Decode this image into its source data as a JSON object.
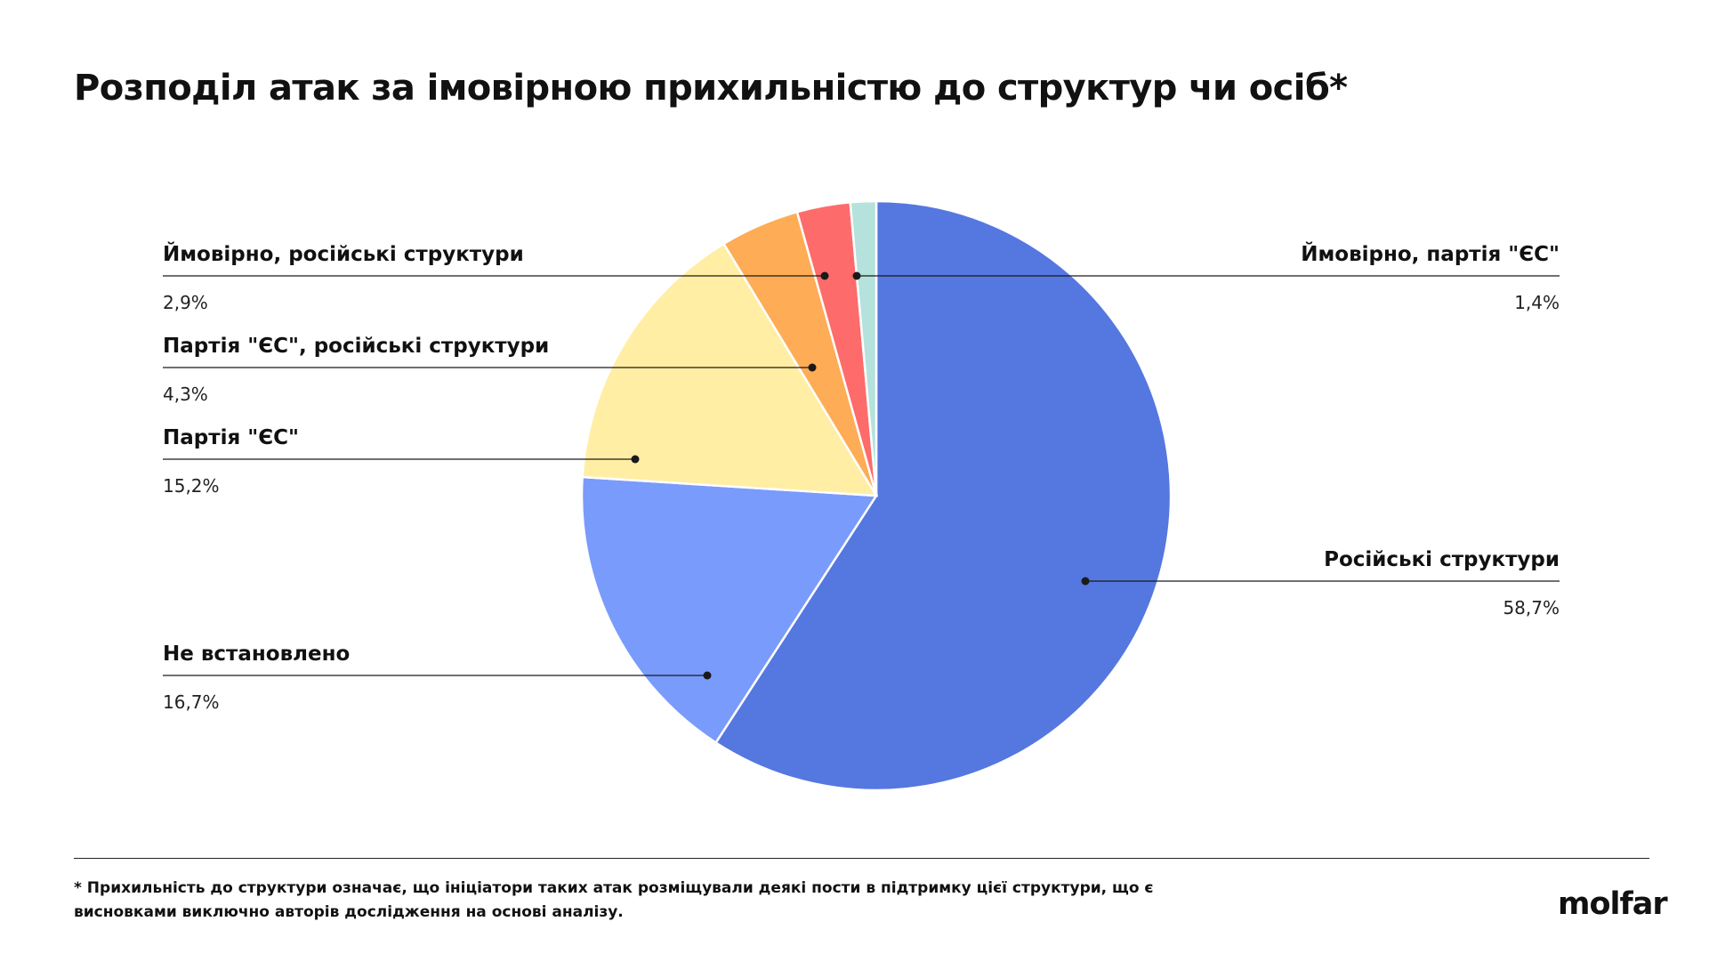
{
  "title": "Розподіл атак за імовірною прихильністю до структур чи осіб*",
  "chart_data": {
    "type": "pie",
    "title": "Розподіл атак за імовірною прихильністю до структур чи осіб*",
    "unit": "%",
    "slices": [
      {
        "label": "Російські структури",
        "value": 58.7,
        "display": "58,7%",
        "color": "#5577E0",
        "side": "right"
      },
      {
        "label": "Не встановлено",
        "value": 16.7,
        "display": "16,7%",
        "color": "#799BFB",
        "side": "left"
      },
      {
        "label": "Партія \"ЄС\"",
        "value": 15.2,
        "display": "15,2%",
        "color": "#FFEEA3",
        "side": "left"
      },
      {
        "label": "Партія \"ЄС\", російські структури",
        "value": 4.3,
        "display": "4,3%",
        "color": "#FEAC56",
        "side": "left"
      },
      {
        "label": "Ймовірно, російські структури",
        "value": 2.9,
        "display": "2,9%",
        "color": "#FE6B6B",
        "side": "left"
      },
      {
        "label": "Ймовірно, партія \"ЄС\"",
        "value": 1.4,
        "display": "1,4%",
        "color": "#B5E2DC",
        "side": "right"
      }
    ]
  },
  "footnote": "* Прихильність до структури означає, що ініціатори таких атак розміщували деякі пости в підтримку цієї структури, що є висновками виключно авторів дослідження на основі аналізу.",
  "logo": "molfar"
}
